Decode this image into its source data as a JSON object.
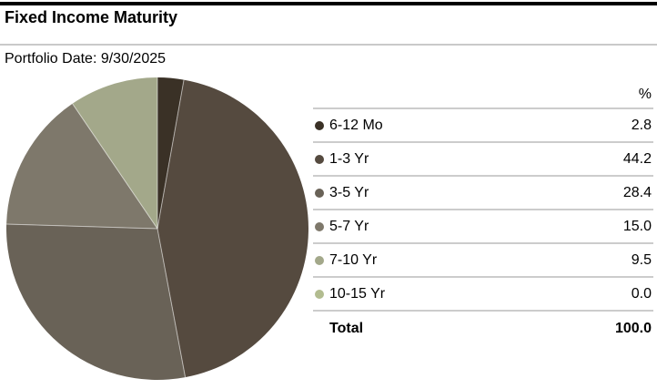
{
  "header": {
    "title": "Fixed Income Maturity",
    "portfolio_date": "Portfolio Date: 9/30/2025"
  },
  "table": {
    "value_column_header": "%",
    "total_label": "Total",
    "total_value": "100.0"
  },
  "colors": {
    "top_bar": "#000000",
    "divider": "#cccccc",
    "slice_separator": "rgba(255,255,255,0.55)"
  },
  "chart_data": {
    "type": "pie",
    "title": "Fixed Income Maturity",
    "subtitle": "Portfolio Date: 9/30/2025",
    "start_angle_deg": 0,
    "direction": "clockwise",
    "legend_position": "right",
    "categories": [
      "6-12 Mo",
      "1-3 Yr",
      "3-5 Yr",
      "5-7 Yr",
      "7-10 Yr",
      "10-15 Yr"
    ],
    "values": [
      2.8,
      44.2,
      28.4,
      15.0,
      9.5,
      0.0
    ],
    "display_values": [
      "2.8",
      "44.2",
      "28.4",
      "15.0",
      "9.5",
      "0.0"
    ],
    "colors": [
      "#3a3126",
      "#554a3f",
      "#696257",
      "#7e786b",
      "#a3a88a",
      "#b2bc90"
    ],
    "total": 100.0,
    "value_unit": "%"
  }
}
